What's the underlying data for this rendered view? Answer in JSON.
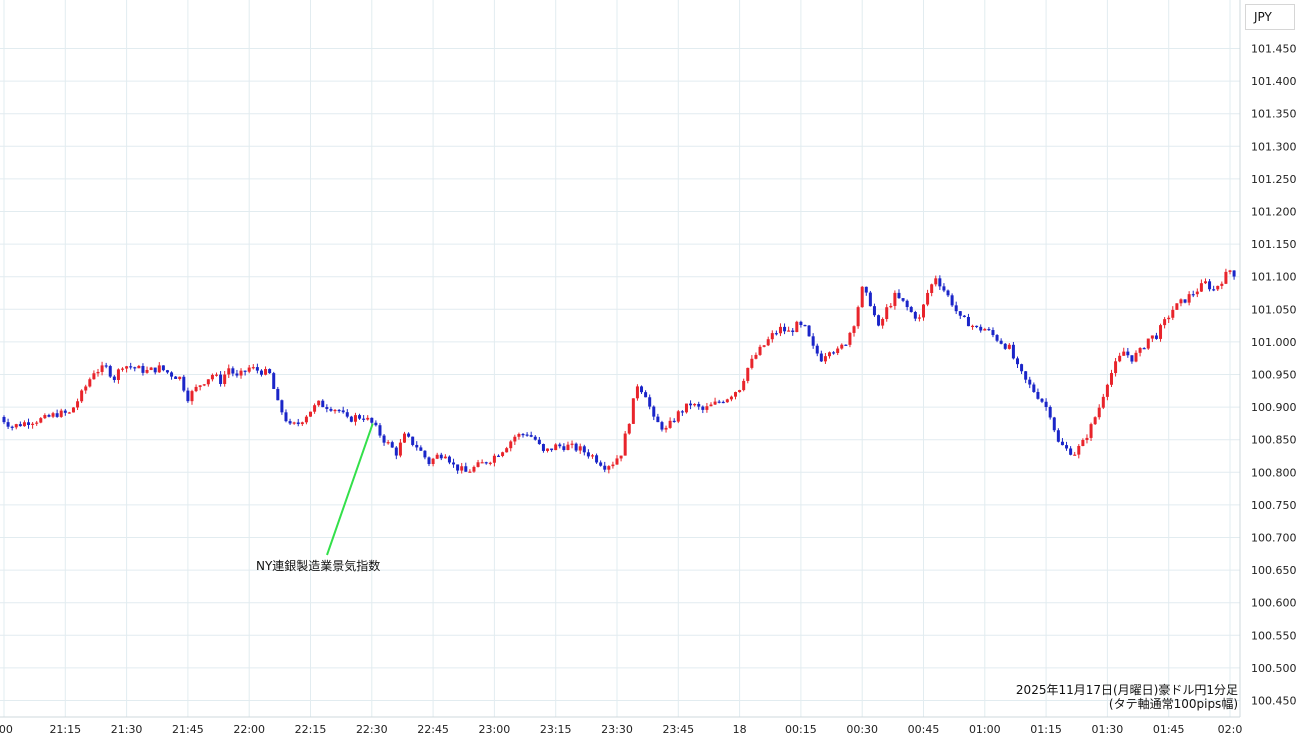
{
  "chart_data": {
    "type": "candlestick",
    "currency": "JPY",
    "caption_line1": "2025年11月17日(月曜日)豪ドル円1分足",
    "caption_line2": "(タテ軸通常100pips幅)",
    "annotation": {
      "label": "NY連銀製造業景気指数",
      "time": "22:30",
      "price": 100.875
    },
    "y_ticks": [
      "101.450",
      "101.400",
      "101.350",
      "101.300",
      "101.250",
      "101.200",
      "101.150",
      "101.100",
      "101.050",
      "101.000",
      "100.950",
      "100.900",
      "100.850",
      "100.800",
      "100.750",
      "100.700",
      "100.650",
      "100.600",
      "100.550",
      "100.500",
      "100.450"
    ],
    "ylim": [
      100.43,
      101.48
    ],
    "x_ticks": [
      ":00",
      "21:15",
      "21:30",
      "21:45",
      "22:00",
      "22:15",
      "22:30",
      "22:45",
      "23:00",
      "23:15",
      "23:30",
      "23:45",
      "18",
      "00:15",
      "00:30",
      "00:45",
      "01:00",
      "01:15",
      "01:30",
      "01:45",
      "02:0"
    ],
    "x_tick_minutes": [
      1260,
      1275,
      1290,
      1305,
      1320,
      1335,
      1350,
      1365,
      1380,
      1395,
      1410,
      1425,
      1440,
      1455,
      1470,
      1485,
      1500,
      1515,
      1530,
      1545,
      1560
    ],
    "x_range_minutes": [
      1260,
      1562
    ],
    "close_path": [
      [
        1259,
        100.885
      ],
      [
        1262,
        100.87
      ],
      [
        1266,
        100.878
      ],
      [
        1270,
        100.882
      ],
      [
        1273,
        100.89
      ],
      [
        1276,
        100.89
      ],
      [
        1279,
        100.92
      ],
      [
        1282,
        100.955
      ],
      [
        1285,
        100.96
      ],
      [
        1287,
        100.945
      ],
      [
        1289,
        100.965
      ],
      [
        1292,
        100.96
      ],
      [
        1295,
        100.955
      ],
      [
        1298,
        100.96
      ],
      [
        1301,
        100.95
      ],
      [
        1303,
        100.945
      ],
      [
        1305,
        100.915
      ],
      [
        1308,
        100.935
      ],
      [
        1311,
        100.95
      ],
      [
        1313,
        100.94
      ],
      [
        1315,
        100.96
      ],
      [
        1317,
        100.945
      ],
      [
        1320,
        100.96
      ],
      [
        1323,
        100.955
      ],
      [
        1325,
        100.95
      ],
      [
        1327,
        100.905
      ],
      [
        1330,
        100.87
      ],
      [
        1332,
        100.875
      ],
      [
        1335,
        100.895
      ],
      [
        1337,
        100.905
      ],
      [
        1340,
        100.9
      ],
      [
        1342,
        100.895
      ],
      [
        1344,
        100.88
      ],
      [
        1346,
        100.885
      ],
      [
        1348,
        100.885
      ],
      [
        1350,
        100.875
      ],
      [
        1353,
        100.85
      ],
      [
        1356,
        100.83
      ],
      [
        1358,
        100.855
      ],
      [
        1361,
        100.84
      ],
      [
        1364,
        100.815
      ],
      [
        1366,
        100.825
      ],
      [
        1368,
        100.83
      ],
      [
        1370,
        100.81
      ],
      [
        1373,
        100.8
      ],
      [
        1376,
        100.81
      ],
      [
        1379,
        100.82
      ],
      [
        1382,
        100.835
      ],
      [
        1385,
        100.855
      ],
      [
        1388,
        100.86
      ],
      [
        1390,
        100.85
      ],
      [
        1392,
        100.83
      ],
      [
        1395,
        100.84
      ],
      [
        1398,
        100.84
      ],
      [
        1401,
        100.835
      ],
      [
        1404,
        100.825
      ],
      [
        1407,
        100.81
      ],
      [
        1409,
        100.815
      ],
      [
        1411,
        100.83
      ],
      [
        1413,
        100.88
      ],
      [
        1415,
        100.935
      ],
      [
        1417,
        100.92
      ],
      [
        1419,
        100.88
      ],
      [
        1422,
        100.865
      ],
      [
        1425,
        100.89
      ],
      [
        1428,
        100.905
      ],
      [
        1431,
        100.895
      ],
      [
        1434,
        100.905
      ],
      [
        1437,
        100.915
      ],
      [
        1440,
        100.93
      ],
      [
        1442,
        100.96
      ],
      [
        1444,
        100.98
      ],
      [
        1446,
        100.995
      ],
      [
        1448,
        101.01
      ],
      [
        1450,
        101.02
      ],
      [
        1452,
        101.015
      ],
      [
        1454,
        101.025
      ],
      [
        1456,
        101.02
      ],
      [
        1458,
        100.99
      ],
      [
        1460,
        100.975
      ],
      [
        1462,
        100.99
      ],
      [
        1464,
        100.985
      ],
      [
        1466,
        101.0
      ],
      [
        1468,
        101.03
      ],
      [
        1470,
        101.08
      ],
      [
        1472,
        101.06
      ],
      [
        1474,
        101.02
      ],
      [
        1476,
        101.05
      ],
      [
        1478,
        101.07
      ],
      [
        1480,
        101.06
      ],
      [
        1482,
        101.045
      ],
      [
        1484,
        101.035
      ],
      [
        1486,
        101.075
      ],
      [
        1488,
        101.1
      ],
      [
        1490,
        101.08
      ],
      [
        1492,
        101.06
      ],
      [
        1494,
        101.035
      ],
      [
        1496,
        101.03
      ],
      [
        1498,
        101.02
      ],
      [
        1500,
        101.02
      ],
      [
        1502,
        101.01
      ],
      [
        1504,
        101.0
      ],
      [
        1506,
        100.99
      ],
      [
        1508,
        100.96
      ],
      [
        1510,
        100.94
      ],
      [
        1512,
        100.925
      ],
      [
        1514,
        100.91
      ],
      [
        1516,
        100.89
      ],
      [
        1518,
        100.845
      ],
      [
        1520,
        100.835
      ],
      [
        1522,
        100.83
      ],
      [
        1524,
        100.845
      ],
      [
        1526,
        100.87
      ],
      [
        1528,
        100.9
      ],
      [
        1530,
        100.94
      ],
      [
        1532,
        100.965
      ],
      [
        1534,
        100.985
      ],
      [
        1536,
        100.975
      ],
      [
        1538,
        100.985
      ],
      [
        1540,
        101.005
      ],
      [
        1542,
        101.01
      ],
      [
        1544,
        101.03
      ],
      [
        1546,
        101.05
      ],
      [
        1548,
        101.06
      ],
      [
        1550,
        101.07
      ],
      [
        1552,
        101.08
      ],
      [
        1554,
        101.09
      ],
      [
        1556,
        101.08
      ],
      [
        1558,
        101.095
      ],
      [
        1560,
        101.11
      ],
      [
        1562,
        101.1
      ]
    ],
    "colors": {
      "up": "#e8242b",
      "down": "#1a25c8",
      "grid": "#e2ecf0",
      "annotation_line": "#33e04a"
    }
  }
}
